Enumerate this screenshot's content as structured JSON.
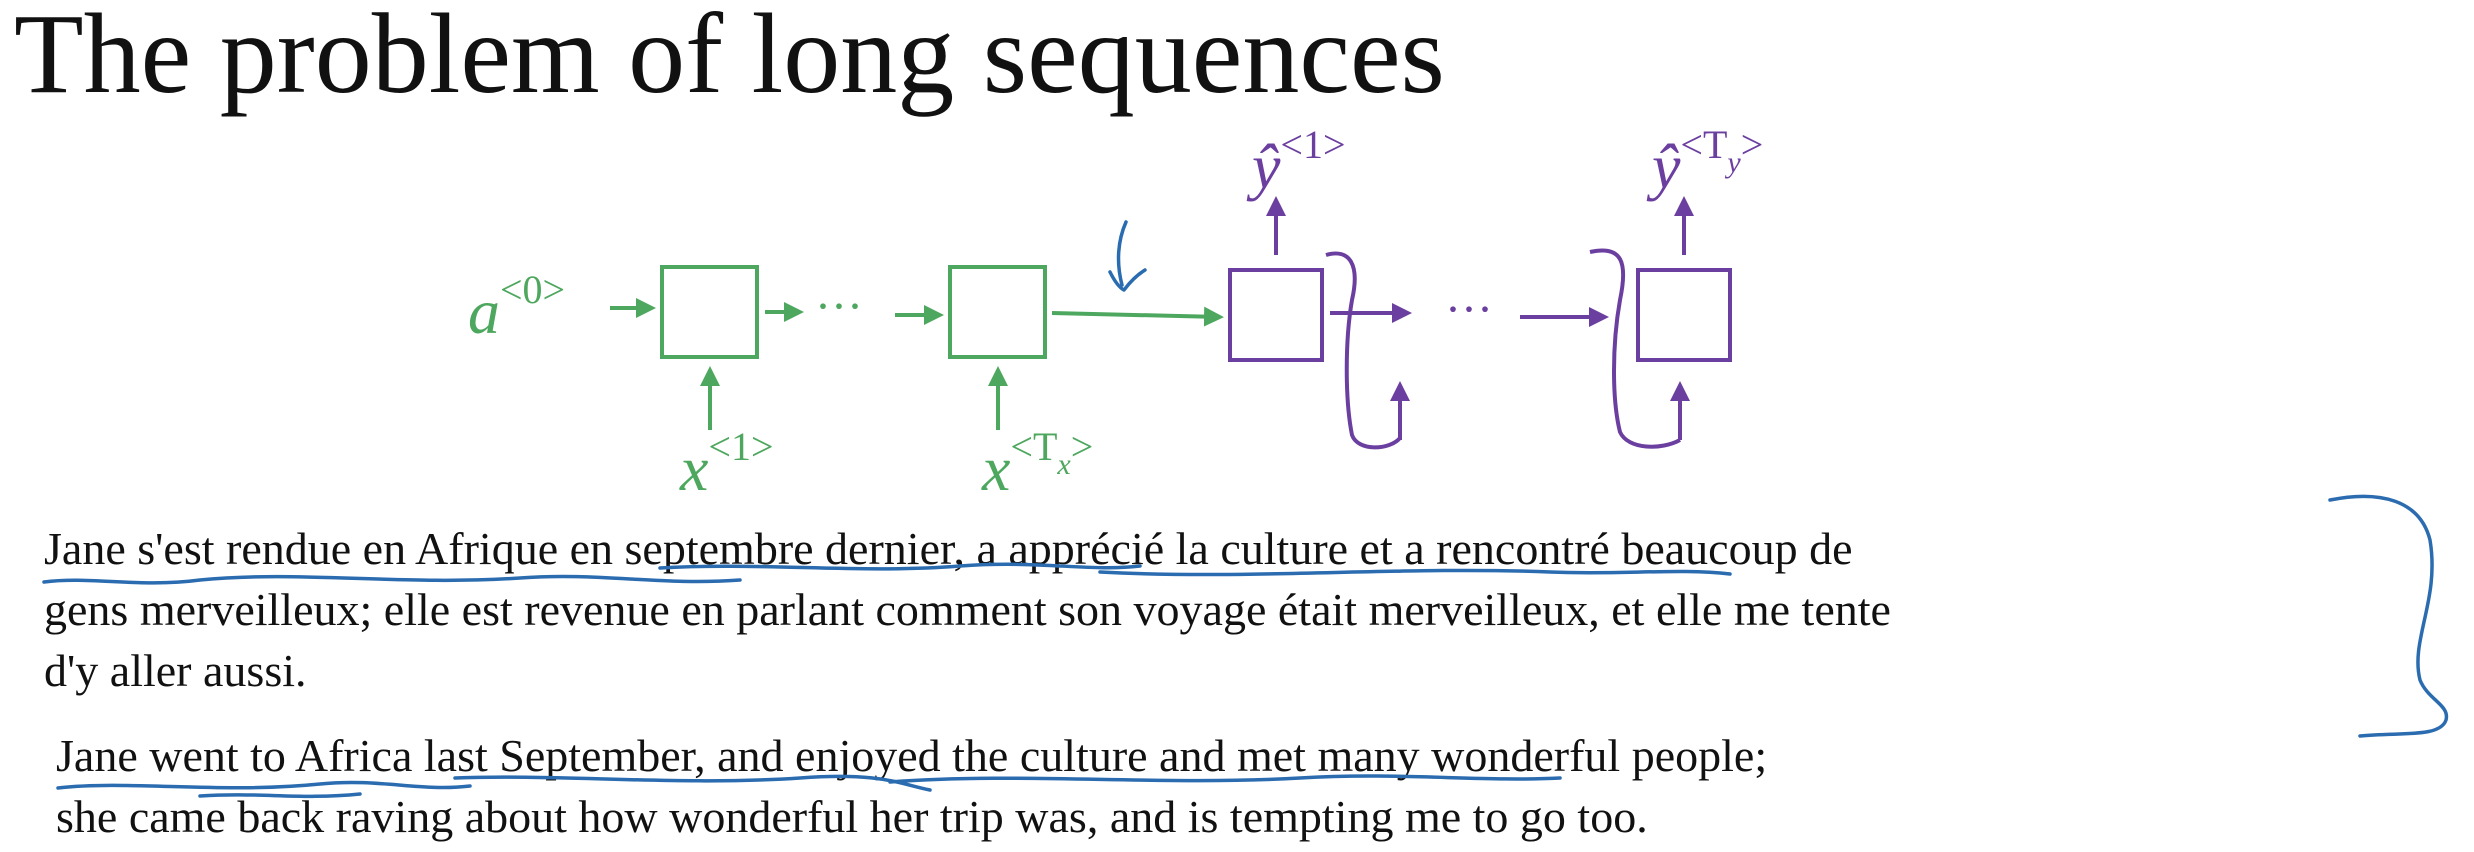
{
  "title": "The problem of long sequences",
  "colors": {
    "encoder": "#4ea75e",
    "decoder": "#6b3fa0",
    "ink": "#2b6cb0",
    "text": "#111111"
  },
  "diagram": {
    "encoder_input_state": {
      "base": "a",
      "sup": "<0>"
    },
    "encoder_inputs": [
      {
        "base": "x",
        "sup": "<1>"
      },
      {
        "base": "x",
        "sup_open": "<T",
        "sup_sub": "x",
        "sup_close": ">"
      }
    ],
    "decoder_outputs": [
      {
        "base": "ŷ",
        "sup": "<1>"
      },
      {
        "base": "ŷ",
        "sup_open": "<T",
        "sup_sub": "y",
        "sup_close": ">"
      }
    ],
    "ellipsis": "···"
  },
  "french_paragraph": {
    "lines": [
      "Jane s'est rendue en Afrique en septembre dernier, a apprécié la culture et a rencontré beaucoup de",
      "gens merveilleux; elle est revenue en parlant comment son voyage était merveilleux, et elle me tente",
      "d'y aller aussi."
    ]
  },
  "english_paragraph": {
    "lines": [
      "Jane went to Africa last September, and enjoyed the culture and met many wonderful people;",
      "she came back raving about how wonderful her trip was, and is tempting me to go too."
    ]
  }
}
